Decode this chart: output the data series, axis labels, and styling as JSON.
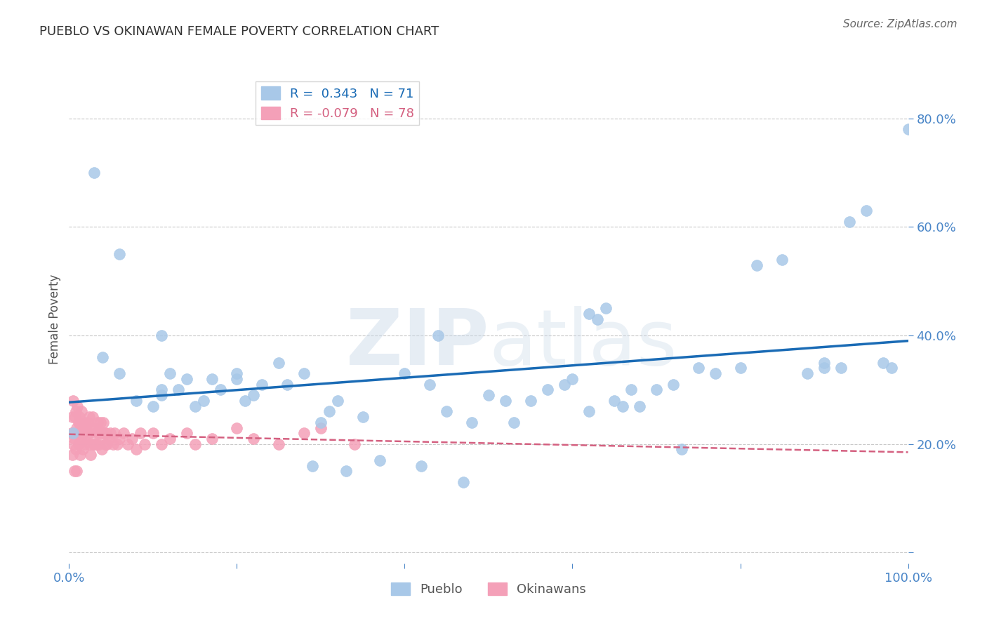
{
  "title": "PUEBLO VS OKINAWAN FEMALE POVERTY CORRELATION CHART",
  "source": "Source: ZipAtlas.com",
  "ylabel": "Female Poverty",
  "xlim": [
    0.0,
    1.0
  ],
  "ylim": [
    -0.02,
    0.88
  ],
  "pueblo_color": "#a8c8e8",
  "okinawan_color": "#f4a0b8",
  "pueblo_line_color": "#1a6bb5",
  "okinawan_line_color": "#d46080",
  "pueblo_R": 0.343,
  "pueblo_N": 71,
  "okinawan_R": -0.079,
  "okinawan_N": 78,
  "pueblo_x": [
    0.005,
    0.04,
    0.06,
    0.08,
    0.1,
    0.11,
    0.11,
    0.12,
    0.13,
    0.14,
    0.15,
    0.16,
    0.17,
    0.18,
    0.2,
    0.2,
    0.21,
    0.22,
    0.23,
    0.25,
    0.26,
    0.28,
    0.29,
    0.3,
    0.31,
    0.32,
    0.33,
    0.35,
    0.37,
    0.4,
    0.42,
    0.43,
    0.44,
    0.45,
    0.47,
    0.48,
    0.5,
    0.52,
    0.53,
    0.55,
    0.57,
    0.59,
    0.6,
    0.62,
    0.63,
    0.64,
    0.65,
    0.66,
    0.67,
    0.68,
    0.7,
    0.72,
    0.73,
    0.75,
    0.77,
    0.8,
    0.82,
    0.85,
    0.88,
    0.9,
    0.92,
    0.93,
    0.95,
    0.97,
    0.98,
    1.0,
    0.03,
    0.06,
    0.11,
    0.62,
    0.9
  ],
  "pueblo_y": [
    0.22,
    0.36,
    0.33,
    0.28,
    0.27,
    0.29,
    0.3,
    0.33,
    0.3,
    0.32,
    0.27,
    0.28,
    0.32,
    0.3,
    0.32,
    0.33,
    0.28,
    0.29,
    0.31,
    0.35,
    0.31,
    0.33,
    0.16,
    0.24,
    0.26,
    0.28,
    0.15,
    0.25,
    0.17,
    0.33,
    0.16,
    0.31,
    0.4,
    0.26,
    0.13,
    0.24,
    0.29,
    0.28,
    0.24,
    0.28,
    0.3,
    0.31,
    0.32,
    0.26,
    0.43,
    0.45,
    0.28,
    0.27,
    0.3,
    0.27,
    0.3,
    0.31,
    0.19,
    0.34,
    0.33,
    0.34,
    0.53,
    0.54,
    0.33,
    0.34,
    0.34,
    0.61,
    0.63,
    0.35,
    0.34,
    0.78,
    0.7,
    0.55,
    0.4,
    0.44,
    0.35
  ],
  "okinawan_x": [
    0.003,
    0.004,
    0.004,
    0.005,
    0.005,
    0.006,
    0.006,
    0.007,
    0.007,
    0.008,
    0.008,
    0.009,
    0.009,
    0.01,
    0.01,
    0.011,
    0.011,
    0.012,
    0.012,
    0.013,
    0.013,
    0.014,
    0.015,
    0.015,
    0.016,
    0.017,
    0.018,
    0.019,
    0.02,
    0.021,
    0.022,
    0.023,
    0.024,
    0.025,
    0.026,
    0.027,
    0.028,
    0.029,
    0.03,
    0.031,
    0.032,
    0.033,
    0.034,
    0.035,
    0.036,
    0.037,
    0.038,
    0.039,
    0.04,
    0.041,
    0.042,
    0.043,
    0.044,
    0.045,
    0.047,
    0.049,
    0.052,
    0.054,
    0.057,
    0.06,
    0.065,
    0.07,
    0.075,
    0.08,
    0.085,
    0.09,
    0.1,
    0.11,
    0.12,
    0.14,
    0.15,
    0.17,
    0.2,
    0.22,
    0.25,
    0.28,
    0.3,
    0.34
  ],
  "okinawan_y": [
    0.22,
    0.18,
    0.25,
    0.2,
    0.28,
    0.21,
    0.15,
    0.25,
    0.22,
    0.26,
    0.19,
    0.23,
    0.15,
    0.22,
    0.27,
    0.24,
    0.2,
    0.25,
    0.22,
    0.18,
    0.24,
    0.21,
    0.26,
    0.22,
    0.19,
    0.22,
    0.24,
    0.2,
    0.23,
    0.21,
    0.24,
    0.22,
    0.25,
    0.2,
    0.18,
    0.23,
    0.25,
    0.2,
    0.23,
    0.2,
    0.22,
    0.2,
    0.24,
    0.22,
    0.2,
    0.24,
    0.22,
    0.19,
    0.22,
    0.24,
    0.22,
    0.2,
    0.22,
    0.2,
    0.21,
    0.22,
    0.2,
    0.22,
    0.2,
    0.21,
    0.22,
    0.2,
    0.21,
    0.19,
    0.22,
    0.2,
    0.22,
    0.2,
    0.21,
    0.22,
    0.2,
    0.21,
    0.23,
    0.21,
    0.2,
    0.22,
    0.23,
    0.2
  ],
  "bg_color": "#ffffff",
  "watermark_text": "ZIPatlas",
  "grid_color": "#c8c8c8",
  "ytick_positions": [
    0.0,
    0.2,
    0.4,
    0.6,
    0.8
  ],
  "xtick_positions": [
    0.0,
    0.2,
    0.4,
    0.6,
    0.8,
    1.0
  ],
  "tick_color": "#4a86c8",
  "title_color": "#333333",
  "ylabel_color": "#555555",
  "source_color": "#666666"
}
